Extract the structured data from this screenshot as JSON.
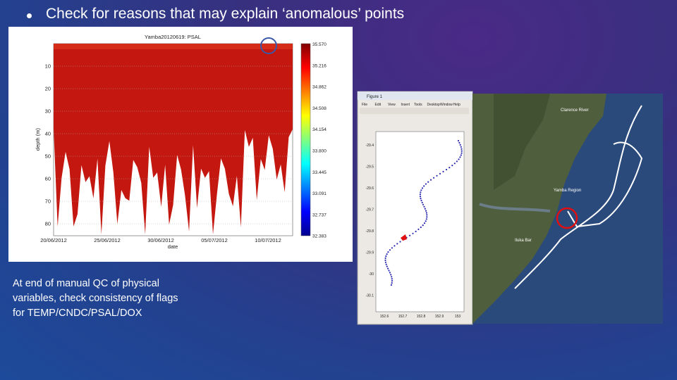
{
  "heading": "Check for reasons that may explain ‘anomalous’ points",
  "caption": "At end of manual QC of physical variables, check consistency of flags for TEMP/CNDC/PSAL/DOX",
  "salinity_plot": {
    "title": "Yamba20120619: PSAL",
    "ylabel": "depth (m)",
    "xlabel": "date",
    "yticks": [
      10,
      20,
      30,
      40,
      50,
      60,
      70,
      80
    ],
    "xticks": [
      "20/06/2012",
      "25/06/2012",
      "30/06/2012",
      "05/07/2012",
      "10/07/2012"
    ],
    "colorbar_ticks": [
      "35.570",
      "35.216",
      "34.862",
      "34.508",
      "34.154",
      "33.800",
      "33.445",
      "33.091",
      "32.737",
      "32.383"
    ]
  },
  "track_figure": {
    "window_title": "Figure 1",
    "menu": [
      "File",
      "Edit",
      "View",
      "Insert",
      "Tools",
      "Desktop",
      "Window",
      "Help"
    ],
    "yticks": [
      "-29.4",
      "-29.5",
      "-29.6",
      "-29.7",
      "-29.8",
      "-29.9",
      "-30",
      "-30.1"
    ],
    "xticks": [
      "152.6",
      "152.7",
      "152.8",
      "152.9",
      "153"
    ]
  },
  "map": {
    "labels": [
      "Clarence River",
      "Yamba Region",
      "Iluka Bar"
    ]
  }
}
